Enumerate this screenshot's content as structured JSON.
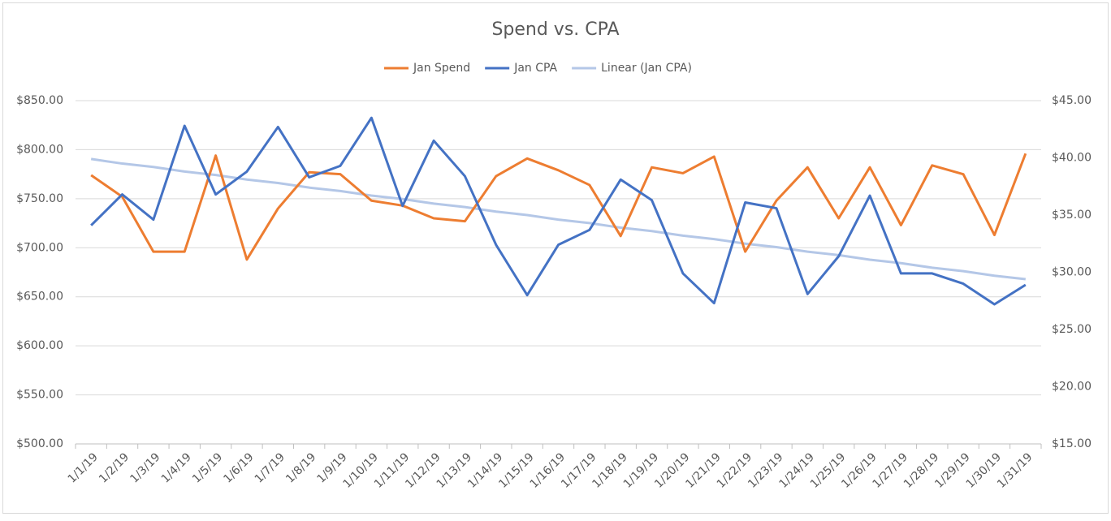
{
  "chart_data": {
    "type": "line",
    "title": "Spend vs. CPA",
    "categories": [
      "1/1/19",
      "1/2/19",
      "1/3/19",
      "1/4/19",
      "1/5/19",
      "1/6/19",
      "1/7/19",
      "1/8/19",
      "1/9/19",
      "1/10/19",
      "1/11/19",
      "1/12/19",
      "1/13/19",
      "1/14/19",
      "1/15/19",
      "1/16/19",
      "1/17/19",
      "1/18/19",
      "1/19/19",
      "1/20/19",
      "1/21/19",
      "1/22/19",
      "1/23/19",
      "1/24/19",
      "1/25/19",
      "1/26/19",
      "1/27/19",
      "1/28/19",
      "1/29/19",
      "1/30/19",
      "1/31/19"
    ],
    "series": [
      {
        "name": "Jan Spend",
        "color": "#ed7d31",
        "values": [
          774,
          752,
          696,
          696,
          794,
          688,
          740,
          777,
          775,
          748,
          743,
          730,
          727,
          773,
          791,
          779,
          764,
          712,
          782,
          776,
          793,
          696,
          748,
          782,
          730,
          782,
          723,
          784,
          775,
          713,
          796
        ]
      },
      {
        "name": "Jan CPA",
        "color": "#4472c4",
        "axis": "y2",
        "values": [
          34.1,
          36.8,
          34.6,
          42.8,
          36.8,
          38.8,
          42.7,
          38.3,
          39.3,
          43.5,
          35.8,
          41.5,
          38.4,
          32.4,
          28.0,
          32.4,
          33.7,
          38.1,
          36.3,
          29.9,
          27.3,
          36.1,
          35.6,
          28.1,
          31.4,
          36.7,
          29.9,
          29.9,
          29.0,
          27.2,
          28.9
        ]
      },
      {
        "name": "Linear (Jan CPA)",
        "color": "#b4c7e7",
        "axis": "y2",
        "values": [
          39.9,
          39.5,
          39.2,
          38.8,
          38.5,
          38.1,
          37.8,
          37.4,
          37.1,
          36.7,
          36.4,
          36.0,
          35.7,
          35.3,
          35.0,
          34.6,
          34.3,
          33.9,
          33.6,
          33.2,
          32.9,
          32.5,
          32.2,
          31.8,
          31.5,
          31.1,
          30.8,
          30.4,
          30.1,
          29.7,
          29.4
        ]
      }
    ],
    "ylim": [
      500,
      850
    ],
    "yticks": [
      {
        "value": 500,
        "label": "$500.00"
      },
      {
        "value": 550,
        "label": "$550.00"
      },
      {
        "value": 600,
        "label": "$600.00"
      },
      {
        "value": 650,
        "label": "$650.00"
      },
      {
        "value": 700,
        "label": "$700.00"
      },
      {
        "value": 750,
        "label": "$750.00"
      },
      {
        "value": 800,
        "label": "$800.00"
      },
      {
        "value": 850,
        "label": "$850.00"
      }
    ],
    "y2lim": [
      15,
      45
    ],
    "y2ticks": [
      {
        "value": 15,
        "label": "$15.00"
      },
      {
        "value": 20,
        "label": "$20.00"
      },
      {
        "value": 25,
        "label": "$25.00"
      },
      {
        "value": 30,
        "label": "$30.00"
      },
      {
        "value": 35,
        "label": "$35.00"
      },
      {
        "value": 40,
        "label": "$40.00"
      },
      {
        "value": 45,
        "label": "$45.00"
      }
    ],
    "grid": true,
    "legend": "top"
  }
}
